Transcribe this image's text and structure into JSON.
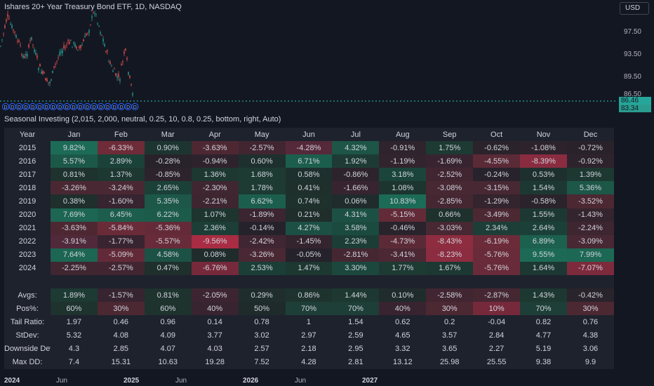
{
  "chart": {
    "title": "Ishares 20+ Year Treasury Bond ETF, 1D, NASDAQ",
    "currency": "USD",
    "price_labels": [
      "97.50",
      "93.50",
      "89.50",
      "86.50"
    ],
    "price_tags": [
      {
        "value": "86.46",
        "color": "#26a69a"
      },
      {
        "value": "83.34",
        "color": "#2a9d8f"
      }
    ],
    "event_markers": [
      "D",
      "D",
      "D",
      "D",
      "D",
      "D",
      "D",
      "D",
      "D",
      "D",
      "D",
      "D",
      "D",
      "D",
      "D",
      "D",
      "D",
      "D",
      "D",
      "D"
    ]
  },
  "indicator": {
    "label": "Seasonal Investing (2,015, 2,000, neutral, 0.25, 10, 0.8, 0.25, bottom, right, Auto)"
  },
  "table": {
    "headers": [
      "Year",
      "Jan",
      "Feb",
      "Mar",
      "Apr",
      "May",
      "Jun",
      "Jul",
      "Aug",
      "Sep",
      "Oct",
      "Nov",
      "Dec"
    ],
    "rows": [
      {
        "label": "2015",
        "cells": [
          "9.82%",
          "-6.33%",
          "0.90%",
          "-3.63%",
          "-2.57%",
          "-4.28%",
          "4.32%",
          "-0.91%",
          "1.75%",
          "-0.62%",
          "-1.08%",
          "-0.72%"
        ],
        "colors": [
          "#1c6b57",
          "#6e2b38",
          "#1d3530",
          "#4d2833",
          "#412632",
          "#55293a",
          "#1d5547",
          "#2f232d",
          "#1d3a33",
          "#2a232c",
          "#2d232c",
          "#2a222b"
        ]
      },
      {
        "label": "2016",
        "cells": [
          "5.57%",
          "2.89%",
          "-0.28%",
          "-0.94%",
          "0.60%",
          "6.71%",
          "1.92%",
          "-1.19%",
          "-1.69%",
          "-4.55%",
          "-8.39%",
          "-0.92%"
        ],
        "colors": [
          "#1c5848",
          "#1b4239",
          "#28222b",
          "#2e232c",
          "#1e302d",
          "#1c5e4d",
          "#1d3b34",
          "#32242d",
          "#382430",
          "#5a2a37",
          "#8a2c40",
          "#2e232c"
        ]
      },
      {
        "label": "2017",
        "cells": [
          "0.81%",
          "1.37%",
          "-0.85%",
          "1.36%",
          "1.68%",
          "0.58%",
          "-0.86%",
          "3.18%",
          "-2.52%",
          "-0.24%",
          "0.53%",
          "1.39%"
        ],
        "colors": [
          "#1e322e",
          "#1d3731",
          "#2d232c",
          "#1d3731",
          "#1d3a33",
          "#1e302d",
          "#2d232c",
          "#1b453b",
          "#412632",
          "#27222b",
          "#1e302d",
          "#1d3731"
        ]
      },
      {
        "label": "2018",
        "cells": [
          "-3.26%",
          "-3.24%",
          "2.65%",
          "-2.30%",
          "1.78%",
          "0.41%",
          "-1.66%",
          "1.08%",
          "-3.08%",
          "-3.15%",
          "1.54%",
          "5.36%"
        ],
        "colors": [
          "#4a2833",
          "#4a2833",
          "#1b4038",
          "#3f2631",
          "#1d3a33",
          "#1e2f2c",
          "#372430",
          "#1d352f",
          "#472833",
          "#482833",
          "#1d3832",
          "#1c5748"
        ]
      },
      {
        "label": "2019",
        "cells": [
          "0.38%",
          "-1.60%",
          "5.35%",
          "-2.21%",
          "6.62%",
          "0.74%",
          "0.06%",
          "10.83%",
          "-2.85%",
          "-1.29%",
          "-0.58%",
          "-3.52%"
        ],
        "colors": [
          "#1e2f2c",
          "#362430",
          "#1c5748",
          "#3e2631",
          "#1c5e4d",
          "#1e312d",
          "#1f2c2b",
          "#1c6b57",
          "#452732",
          "#33242d",
          "#2a232c",
          "#4c2833"
        ]
      },
      {
        "label": "2020",
        "cells": [
          "7.69%",
          "6.45%",
          "6.22%",
          "1.07%",
          "-1.89%",
          "0.21%",
          "4.31%",
          "-5.15%",
          "0.66%",
          "-3.49%",
          "1.55%",
          "-1.43%"
        ],
        "colors": [
          "#1c6653",
          "#1c5d4c",
          "#1c5b4a",
          "#1d342f",
          "#3a2530",
          "#1f2d2b",
          "#1d5044",
          "#632a38",
          "#1e312d",
          "#4c2833",
          "#1d3832",
          "#34242d"
        ]
      },
      {
        "label": "2021",
        "cells": [
          "-3.63%",
          "-5.84%",
          "-5.36%",
          "2.36%",
          "-0.14%",
          "4.27%",
          "3.58%",
          "-0.46%",
          "-3.03%",
          "2.34%",
          "2.64%",
          "-2.24%"
        ],
        "colors": [
          "#4d2833",
          "#6a2b39",
          "#652a38",
          "#1c3e36",
          "#26222b",
          "#1d5044",
          "#1b4a3e",
          "#29232c",
          "#472833",
          "#1c3e36",
          "#1b4038",
          "#3e2631"
        ]
      },
      {
        "label": "2022",
        "cells": [
          "-3.91%",
          "-1.77%",
          "-5.57%",
          "-9.56%",
          "-2.42%",
          "-1.45%",
          "2.23%",
          "-4.73%",
          "-8.43%",
          "-6.19%",
          "6.89%",
          "-3.09%"
        ],
        "colors": [
          "#50293a",
          "#382430",
          "#672b39",
          "#a82c43",
          "#402632",
          "#34242d",
          "#1c3d35",
          "#5c2a37",
          "#8e2c40",
          "#6c2b39",
          "#1c604e",
          "#472833"
        ]
      },
      {
        "label": "2023",
        "cells": [
          "7.64%",
          "-5.09%",
          "4.58%",
          "0.08%",
          "-3.26%",
          "-0.05%",
          "-2.81%",
          "-3.41%",
          "-8.23%",
          "-5.76%",
          "9.55%",
          "7.99%"
        ],
        "colors": [
          "#1c6653",
          "#622a38",
          "#1c5245",
          "#1f2c2b",
          "#4a2833",
          "#25222b",
          "#452732",
          "#4b2833",
          "#8c2c40",
          "#692b39",
          "#1c6a56",
          "#1c6854"
        ]
      },
      {
        "label": "2024",
        "cells": [
          "-2.25%",
          "-2.57%",
          "0.47%",
          "-6.76%",
          "2.53%",
          "1.47%",
          "3.30%",
          "1.77%",
          "1.67%",
          "-5.76%",
          "1.64%",
          "-7.07%"
        ],
        "colors": [
          "#3f2631",
          "#412632",
          "#1e2f2c",
          "#76293b",
          "#1b3f37",
          "#1d3731",
          "#1b473c",
          "#1d3a33",
          "#1d3832",
          "#692b39",
          "#1d3832",
          "#7d2a3d"
        ]
      }
    ],
    "stats": [
      {
        "label": "Avgs:",
        "cells": [
          "1.89%",
          "-1.57%",
          "0.81%",
          "-2.05%",
          "0.29%",
          "0.86%",
          "1.44%",
          "0.10%",
          "-2.58%",
          "-2.87%",
          "1.43%",
          "-0.42%"
        ],
        "colors": [
          "#1d3a33",
          "#362430",
          "#1e322e",
          "#3c2530",
          "#1f2e2c",
          "#1e322e",
          "#1d3731",
          "#1f2c2b",
          "#412632",
          "#452732",
          "#1d3731",
          "#29232c"
        ]
      },
      {
        "label": "Pos%:",
        "cells": [
          "60%",
          "30%",
          "60%",
          "40%",
          "50%",
          "70%",
          "70%",
          "40%",
          "30%",
          "10%",
          "70%",
          "30%"
        ],
        "colors": [
          "#1e322e",
          "#4c2833",
          "#1e322e",
          "#382430",
          "#1f2a2b",
          "#1d3f37",
          "#1d3f37",
          "#382430",
          "#4c2833",
          "#76293b",
          "#1d3f37",
          "#4c2833"
        ]
      },
      {
        "label": "Tail Ratio:",
        "cells": [
          "1.97",
          "0.46",
          "0.96",
          "0.14",
          "0.78",
          "1",
          "1.54",
          "0.62",
          "0.2",
          "-0.04",
          "0.82",
          "0.76"
        ],
        "colors": []
      },
      {
        "label": "StDev:",
        "cells": [
          "5.32",
          "4.08",
          "4.09",
          "3.77",
          "3.02",
          "2.97",
          "2.59",
          "4.65",
          "3.57",
          "2.84",
          "4.77",
          "4.38"
        ],
        "colors": []
      },
      {
        "label": "Downside Dev",
        "cells": [
          "4.3",
          "2.85",
          "4.07",
          "4.03",
          "2.57",
          "2.18",
          "2.95",
          "3.32",
          "3.65",
          "2.27",
          "5.19",
          "3.06"
        ],
        "colors": []
      },
      {
        "label": "Max DD:",
        "cells": [
          "7.4",
          "15.31",
          "10.63",
          "19.28",
          "7.52",
          "4.28",
          "2.81",
          "13.12",
          "25.98",
          "25.55",
          "9.38",
          "9.9"
        ],
        "colors": []
      }
    ]
  },
  "time_axis": [
    {
      "label": "2024",
      "bold": true
    },
    {
      "label": "Jun",
      "bold": false
    },
    {
      "label": "2025",
      "bold": true
    },
    {
      "label": "Jun",
      "bold": false
    },
    {
      "label": "2026",
      "bold": true
    },
    {
      "label": "Jun",
      "bold": false
    },
    {
      "label": "2027",
      "bold": true
    }
  ]
}
